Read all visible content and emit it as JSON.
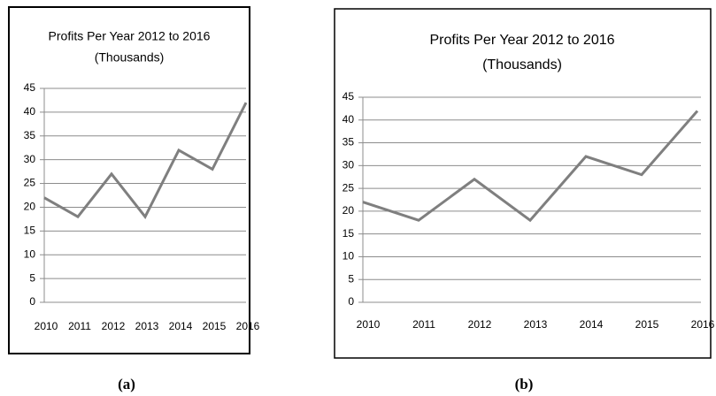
{
  "chart_data": [
    {
      "type": "line",
      "title": "Profits  Per Year 2012 to 2016",
      "subtitle": "(Thousands)",
      "caption": "(a)",
      "categories": [
        "2010",
        "2011",
        "2012",
        "2013",
        "2014",
        "2015",
        "2016"
      ],
      "values": [
        22,
        18,
        27,
        18,
        32,
        28,
        42
      ],
      "color": "#7f7f7f",
      "ylim": [
        0,
        45
      ],
      "yticks": [
        0,
        5,
        10,
        15,
        20,
        25,
        30,
        35,
        40,
        45
      ],
      "grid": true
    },
    {
      "type": "line",
      "title": "Profits  Per Year 2012 to 2016",
      "subtitle": "(Thousands)",
      "caption": "(b)",
      "categories": [
        "2010",
        "2011",
        "2012",
        "2013",
        "2014",
        "2015",
        "2016"
      ],
      "values": [
        22,
        18,
        27,
        18,
        32,
        28,
        42
      ],
      "color": "#7f7f7f",
      "ylim": [
        0,
        45
      ],
      "yticks": [
        0,
        5,
        10,
        15,
        20,
        25,
        30,
        35,
        40,
        45
      ],
      "grid": true
    }
  ]
}
